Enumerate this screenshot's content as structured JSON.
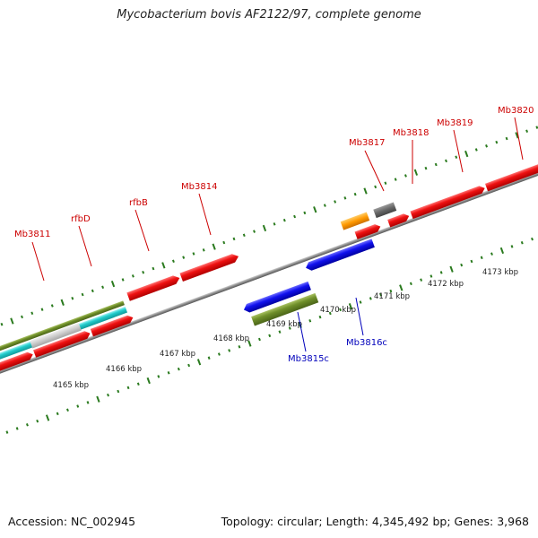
{
  "title": "Mycobacterium bovis AF2122/97, complete genome",
  "footer": {
    "accession": "Accession: NC_002945",
    "summary": "Topology: circular; Length: 4,345,492 bp; Genes: 3,968"
  },
  "colors": {
    "forward_label": "#cc0000",
    "reverse_label": "#0000bb",
    "tick": "#2a7a1e",
    "backbone": "#888888"
  },
  "scale_labels": [
    "4165 kbp",
    "4166 kbp",
    "4167 kbp",
    "4168 kbp",
    "4169 kbp",
    "4170 kbp",
    "4171 kbp",
    "4172 kbp",
    "4173 kbp"
  ],
  "forward_gene_labels": [
    "Mb3811",
    "rfbD",
    "rfbB",
    "Mb3814",
    "Mb3817",
    "Mb3818",
    "Mb3819",
    "Mb3820"
  ],
  "reverse_gene_labels": [
    "Mb3815c",
    "Mb3816c"
  ]
}
